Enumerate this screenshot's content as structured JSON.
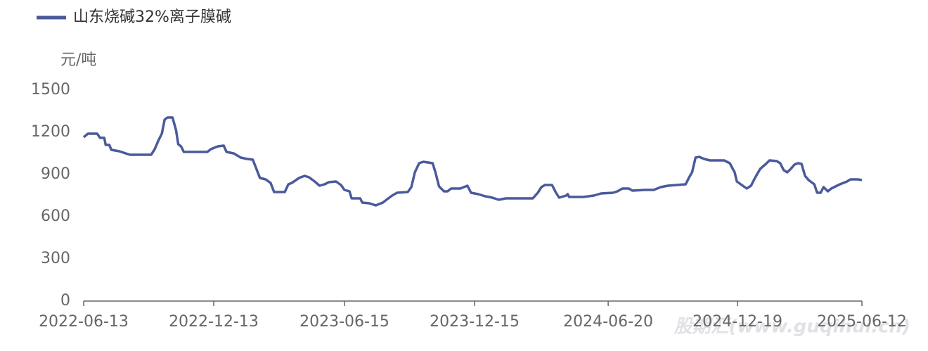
{
  "chart_data": {
    "type": "line",
    "y_label": "元/吨",
    "watermark": "股期汇(www.guqihui.cn)",
    "x": [
      "2022-06-13",
      "2022-06-19",
      "2022-07-02",
      "2022-07-06",
      "2022-07-12",
      "2022-07-14",
      "2022-07-19",
      "2022-07-22",
      "2022-08-02",
      "2022-08-17",
      "2022-09-16",
      "2022-09-21",
      "2022-09-26",
      "2022-10-01",
      "2022-10-05",
      "2022-10-09",
      "2022-10-16",
      "2022-10-21",
      "2022-10-24",
      "2022-10-28",
      "2022-11-01",
      "2022-12-04",
      "2022-12-09",
      "2022-12-19",
      "2022-12-27",
      "2022-12-31",
      "2023-01-10",
      "2023-01-20",
      "2023-01-29",
      "2023-02-06",
      "2023-02-11",
      "2023-02-16",
      "2023-02-24",
      "2023-03-03",
      "2023-03-08",
      "2023-03-23",
      "2023-03-28",
      "2023-04-02",
      "2023-04-12",
      "2023-04-20",
      "2023-04-26",
      "2023-05-04",
      "2023-05-11",
      "2023-05-18",
      "2023-05-24",
      "2023-06-03",
      "2023-06-10",
      "2023-06-15",
      "2023-06-22",
      "2023-06-25",
      "2023-07-07",
      "2023-07-10",
      "2023-07-20",
      "2023-07-29",
      "2023-08-08",
      "2023-08-13",
      "2023-08-21",
      "2023-08-28",
      "2023-09-12",
      "2023-09-17",
      "2023-09-22",
      "2023-09-28",
      "2023-10-04",
      "2023-10-17",
      "2023-10-21",
      "2023-10-26",
      "2023-11-02",
      "2023-11-07",
      "2023-11-12",
      "2023-11-25",
      "2023-12-05",
      "2023-12-10",
      "2023-12-20",
      "2023-12-30",
      "2024-01-09",
      "2024-01-18",
      "2024-01-28",
      "2024-03-06",
      "2024-03-13",
      "2024-03-18",
      "2024-03-23",
      "2024-04-02",
      "2024-04-07",
      "2024-04-12",
      "2024-04-22",
      "2024-04-24",
      "2024-04-26",
      "2024-05-16",
      "2024-05-31",
      "2024-06-10",
      "2024-06-27",
      "2024-07-03",
      "2024-07-10",
      "2024-07-19",
      "2024-07-24",
      "2024-08-11",
      "2024-08-23",
      "2024-09-02",
      "2024-09-12",
      "2024-10-07",
      "2024-10-12",
      "2024-10-16",
      "2024-10-21",
      "2024-10-26",
      "2024-11-02",
      "2024-11-10",
      "2024-11-30",
      "2024-12-08",
      "2024-12-15",
      "2024-12-18",
      "2024-12-25",
      "2025-01-01",
      "2025-01-07",
      "2025-01-13",
      "2025-01-20",
      "2025-01-28",
      "2025-02-02",
      "2025-02-12",
      "2025-02-17",
      "2025-02-22",
      "2025-02-27",
      "2025-03-04",
      "2025-03-09",
      "2025-03-14",
      "2025-03-19",
      "2025-03-24",
      "2025-03-29",
      "2025-04-06",
      "2025-04-10",
      "2025-04-15",
      "2025-04-19",
      "2025-04-25",
      "2025-04-30",
      "2025-05-12",
      "2025-05-22",
      "2025-05-27",
      "2025-06-06",
      "2025-06-12"
    ],
    "series": [
      {
        "name": "山东烧碱32%离子膜碱",
        "color": "#4a5a9c",
        "values": [
          1165,
          1190,
          1190,
          1160,
          1160,
          1110,
          1110,
          1075,
          1065,
          1040,
          1040,
          1080,
          1140,
          1190,
          1290,
          1305,
          1305,
          1215,
          1115,
          1100,
          1060,
          1060,
          1080,
          1100,
          1105,
          1060,
          1050,
          1020,
          1010,
          1005,
          940,
          875,
          865,
          840,
          775,
          775,
          830,
          840,
          875,
          890,
          880,
          850,
          820,
          830,
          845,
          850,
          825,
          790,
          780,
          730,
          730,
          700,
          695,
          680,
          700,
          720,
          750,
          770,
          775,
          810,
          915,
          980,
          990,
          980,
          915,
          815,
          780,
          780,
          800,
          800,
          820,
          770,
          760,
          745,
          735,
          720,
          730,
          730,
          770,
          810,
          825,
          825,
          775,
          735,
          750,
          760,
          740,
          740,
          750,
          765,
          770,
          780,
          800,
          800,
          785,
          790,
          790,
          810,
          820,
          830,
          880,
          915,
          1020,
          1025,
          1010,
          1000,
          1000,
          980,
          915,
          850,
          825,
          800,
          820,
          880,
          940,
          975,
          1000,
          995,
          980,
          930,
          915,
          940,
          970,
          980,
          975,
          890,
          860,
          830,
          770,
          770,
          810,
          780,
          800,
          830,
          850,
          865,
          865,
          860
        ]
      }
    ],
    "xlim": [
      "2022-06-13",
      "2025-06-12"
    ],
    "xticks": [
      "2022-06-13",
      "2022-12-13",
      "2023-06-15",
      "2023-12-15",
      "2024-06-20",
      "2024-12-19",
      "2025-06-12"
    ],
    "ylim": [
      0,
      1500
    ],
    "yticks": [
      0,
      300,
      600,
      900,
      1200,
      1500
    ],
    "legend": "top-left"
  }
}
